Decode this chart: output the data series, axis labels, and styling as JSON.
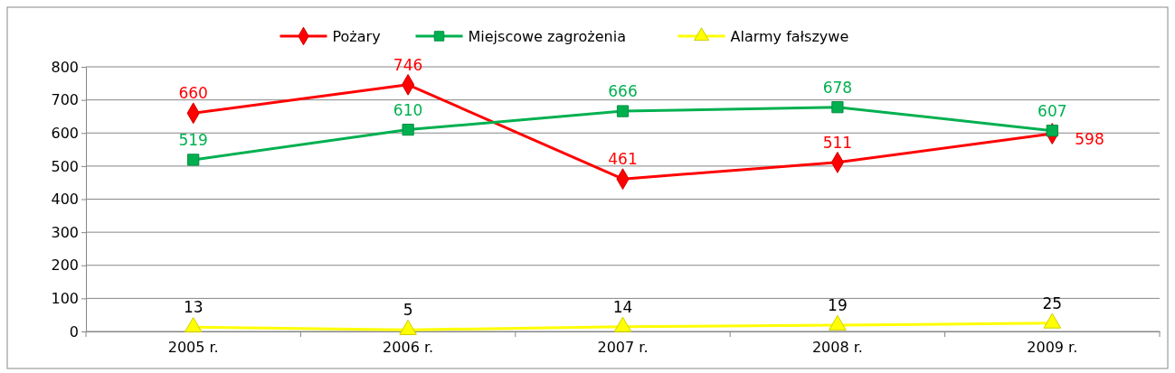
{
  "chart_data": {
    "type": "line",
    "categories": [
      "2005 r.",
      "2006 r.",
      "2007 r.",
      "2008 r.",
      "2009 r."
    ],
    "series": [
      {
        "name": "Pożary",
        "color": "#ff0000",
        "marker": "diamond",
        "values": [
          660,
          746,
          461,
          511,
          598
        ]
      },
      {
        "name": "Miejscowe zagrożenia",
        "color": "#00b050",
        "marker": "square",
        "values": [
          519,
          610,
          666,
          678,
          607
        ]
      },
      {
        "name": "Alarmy fałszywe",
        "color": "#ffff00",
        "marker": "triangle",
        "values": [
          13,
          5,
          14,
          19,
          25
        ]
      }
    ],
    "ylim": [
      0,
      800
    ],
    "yticks": [
      0,
      100,
      200,
      300,
      400,
      500,
      600,
      700,
      800
    ],
    "grid": "y",
    "legend": "top",
    "data_labels": true
  }
}
